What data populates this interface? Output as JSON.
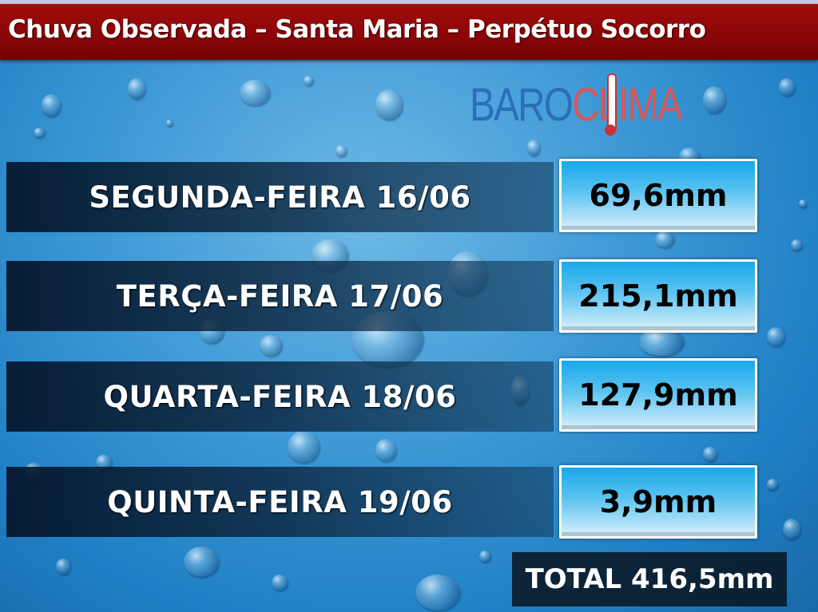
{
  "header": {
    "title": "Chuva Observada – Santa Maria – Perpétuo Socorro"
  },
  "logo": {
    "part1": "BARO",
    "part2": "CLIMA",
    "text": "BAROCLIMA"
  },
  "rows": [
    {
      "day": "SEGUNDA-FEIRA 16/06",
      "value": "69,6mm"
    },
    {
      "day": "TERÇA-FEIRA 17/06",
      "value": "215,1mm"
    },
    {
      "day": "QUARTA-FEIRA 18/06",
      "value": "127,9mm"
    },
    {
      "day": "QUINTA-FEIRA 19/06",
      "value": "3,9mm"
    }
  ],
  "total": "TOTAL 416,5mm",
  "colors": {
    "header": "#8a0606",
    "background": "#3f9ad6",
    "logo_blue": "#2a6fb8",
    "logo_red": "#d8575a"
  }
}
